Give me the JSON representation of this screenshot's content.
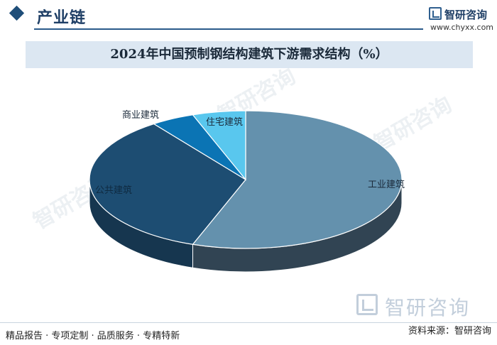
{
  "header": {
    "title": "产业链"
  },
  "logo": {
    "name": "智研咨询",
    "url": "www.chyxx.com"
  },
  "watermark": {
    "text": "智研咨询"
  },
  "chart_data": {
    "type": "pie",
    "title": "2024年中国预制钢结构建筑下游需求结构（%）",
    "categories": [
      "工业建筑",
      "公共建筑",
      "商业建筑",
      "住宅建筑"
    ],
    "values": [
      55.5,
      34.5,
      4.5,
      5.5
    ],
    "colors": [
      "#6491ad",
      "#1d4d72",
      "#0b74b4",
      "#59c7ee"
    ],
    "side_colors": [
      "#314453",
      "#16364f",
      "#0a5a88",
      "#3e9dbd"
    ],
    "legend": "none",
    "labels_on_slices": true,
    "three_d": true
  },
  "footer": {
    "left": "精品报告 · 专项定制 · 品质服务 · 专精特新",
    "right": "资料来源：智研咨询"
  }
}
